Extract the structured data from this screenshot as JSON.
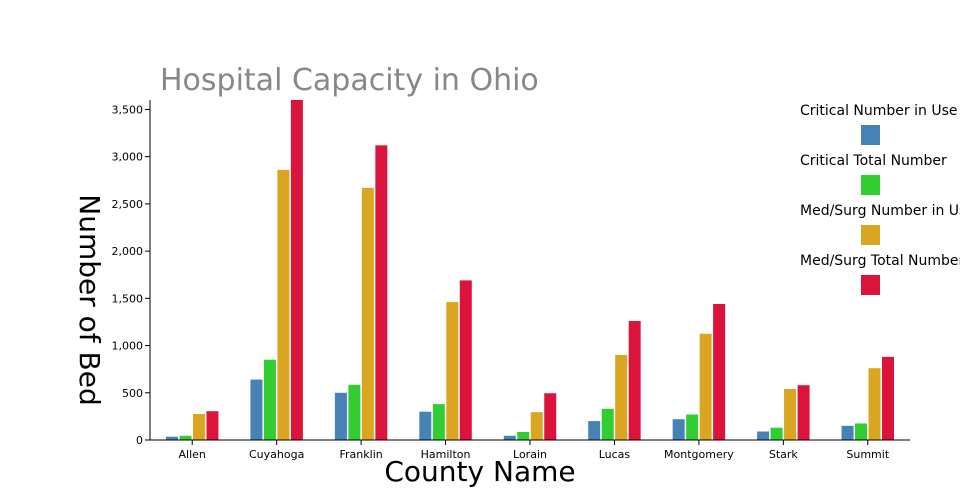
{
  "chart_data": {
    "type": "bar",
    "title": "Hospital Capacity in Ohio",
    "xlabel": "County Name",
    "ylabel": "Number of Bed",
    "categories": [
      "Allen",
      "Cuyahoga",
      "Franklin",
      "Hamilton",
      "Lorain",
      "Lucas",
      "Montgomery",
      "Stark",
      "Summit"
    ],
    "ylim": [
      0,
      3600
    ],
    "yticks": [
      0,
      500,
      1000,
      1500,
      2000,
      2500,
      3000,
      3500
    ],
    "ytick_labels": [
      "0",
      "500",
      "1,000",
      "1,500",
      "2,000",
      "2,500",
      "3,000",
      "3,500"
    ],
    "grid": false,
    "legend_position": "right",
    "series": [
      {
        "name": "Critical Number in Use",
        "color": "#4682b4",
        "values": [
          35,
          640,
          500,
          300,
          45,
          200,
          220,
          90,
          150
        ]
      },
      {
        "name": "Critical Total Number",
        "color": "#32cd32",
        "values": [
          45,
          850,
          585,
          380,
          85,
          330,
          270,
          130,
          175
        ]
      },
      {
        "name": "Med/Surg Number in Use",
        "color": "#daa520",
        "values": [
          275,
          2860,
          2670,
          1460,
          295,
          900,
          1125,
          540,
          760
        ]
      },
      {
        "name": "Med/Surg Total Number",
        "color": "#dc143c",
        "values": [
          305,
          3600,
          3120,
          1690,
          495,
          1260,
          1440,
          580,
          880
        ]
      }
    ]
  }
}
